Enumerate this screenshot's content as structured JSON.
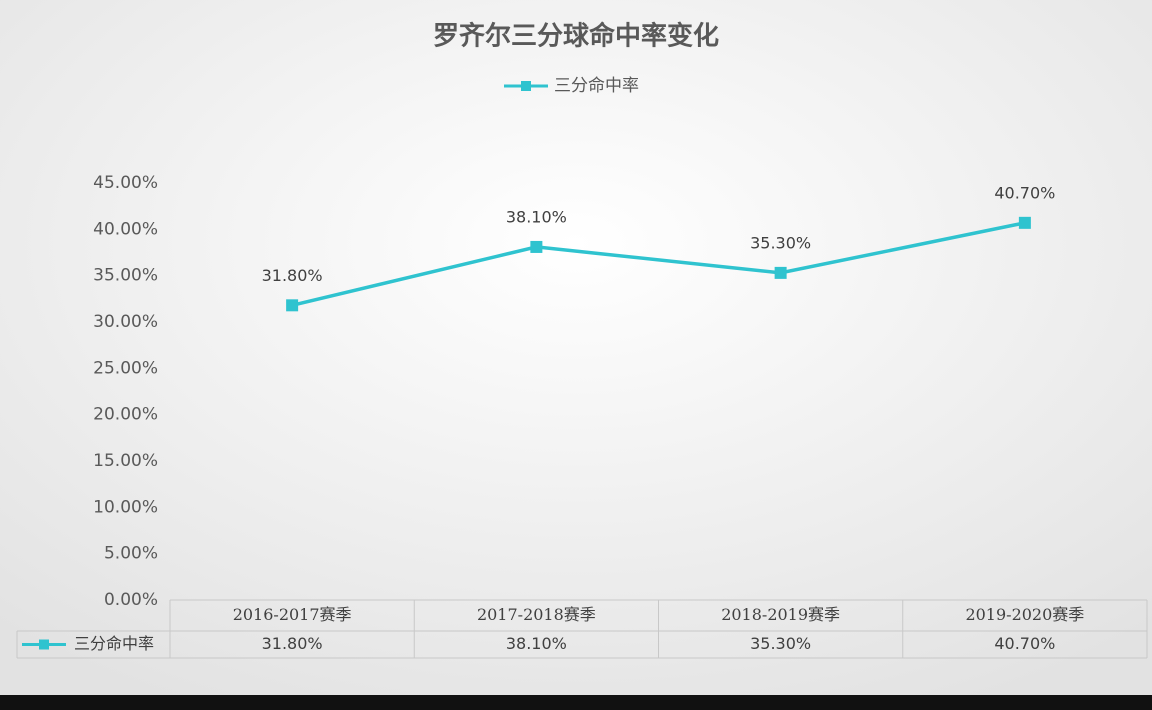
{
  "chart_data": {
    "type": "line",
    "title": "罗齐尔三分球命中率变化",
    "categories": [
      "2016-2017赛季",
      "2017-2018赛季",
      "2018-2019赛季",
      "2019-2020赛季"
    ],
    "series": [
      {
        "name": "三分命中率",
        "color": "#2fc3cf",
        "values": [
          31.8,
          38.1,
          35.3,
          40.7
        ],
        "value_labels": [
          "31.80%",
          "38.10%",
          "35.30%",
          "40.70%"
        ]
      }
    ],
    "ylim": [
      0,
      45
    ],
    "yticks": [
      {
        "value": 0,
        "label": "0.00%"
      },
      {
        "value": 5,
        "label": "5.00%"
      },
      {
        "value": 10,
        "label": "10.00%"
      },
      {
        "value": 15,
        "label": "15.00%"
      },
      {
        "value": 20,
        "label": "20.00%"
      },
      {
        "value": 25,
        "label": "25.00%"
      },
      {
        "value": 30,
        "label": "30.00%"
      },
      {
        "value": 35,
        "label": "35.00%"
      },
      {
        "value": 40,
        "label": "40.00%"
      },
      {
        "value": 45,
        "label": "45.00%"
      }
    ],
    "grid": false,
    "legend": "top",
    "data_table": true
  }
}
